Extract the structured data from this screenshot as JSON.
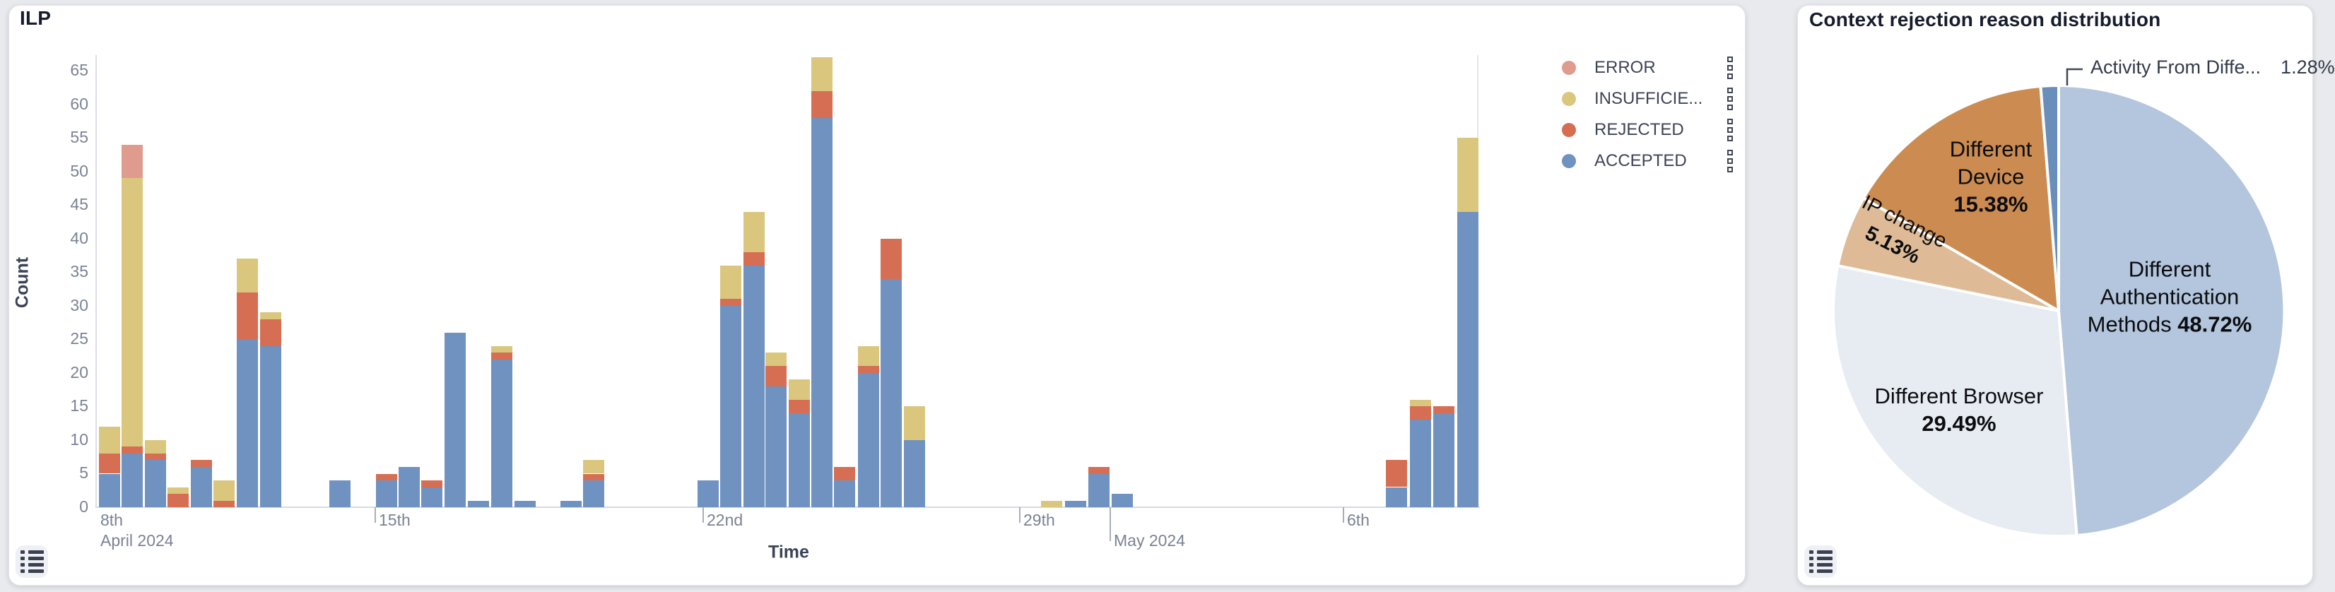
{
  "page": {
    "background_color": "#e9eaee"
  },
  "left_card": {
    "title": "ILP",
    "y_axis_title": "Count",
    "x_axis_title": "Time",
    "legend": [
      {
        "label": "ERROR",
        "color": "#df9c8e"
      },
      {
        "label": "INSUFFICIE...",
        "color": "#dac77d"
      },
      {
        "label": "REJECTED",
        "color": "#d66e53"
      },
      {
        "label": "ACCEPTED",
        "color": "#6f92c0"
      }
    ]
  },
  "right_card": {
    "title": "Context rejection reason distribution"
  },
  "chart_data": [
    {
      "type": "bar",
      "title": "ILP",
      "stacked": true,
      "xlabel": "Time",
      "ylabel": "Count",
      "ylim": [
        0,
        65
      ],
      "grid": false,
      "legend_position": "right",
      "y_ticks": [
        0,
        5,
        10,
        15,
        20,
        25,
        30,
        35,
        40,
        45,
        50,
        55,
        60,
        65
      ],
      "x_ticks": [
        {
          "label": "8th",
          "px": 142,
          "tick": false,
          "row": 1
        },
        {
          "label": "April 2024",
          "px": 142,
          "tick": false,
          "row": 2
        },
        {
          "label": "15th",
          "px": 530,
          "tick": true,
          "row": 1
        },
        {
          "label": "22nd",
          "px": 994,
          "tick": true,
          "row": 1
        },
        {
          "label": "29th",
          "px": 1442,
          "tick": true,
          "row": 1
        },
        {
          "label": "May 2024",
          "px": 1570,
          "tick": true,
          "row": 2,
          "tick_len": 48
        },
        {
          "label": "6th",
          "px": 1900,
          "tick": true,
          "row": 1
        }
      ],
      "series_order": [
        "accepted",
        "rejected",
        "insufficient",
        "error"
      ],
      "series_colors": {
        "accepted": "#6f92c0",
        "rejected": "#d66e53",
        "insufficient": "#dac77d",
        "error": "#df9c8e"
      },
      "bars": [
        {
          "x": 140,
          "accepted": 5,
          "rejected": 3,
          "insufficient": 4,
          "error": 0
        },
        {
          "x": 172,
          "accepted": 8,
          "rejected": 1,
          "insufficient": 40,
          "error": 5
        },
        {
          "x": 205,
          "accepted": 7,
          "rejected": 1,
          "insufficient": 2,
          "error": 0
        },
        {
          "x": 237,
          "accepted": 0,
          "rejected": 2,
          "insufficient": 1,
          "error": 0
        },
        {
          "x": 270,
          "accepted": 6,
          "rejected": 1,
          "insufficient": 0,
          "error": 0
        },
        {
          "x": 302,
          "accepted": 0,
          "rejected": 1,
          "insufficient": 3,
          "error": 0
        },
        {
          "x": 335,
          "accepted": 25,
          "rejected": 7,
          "insufficient": 5,
          "error": 0
        },
        {
          "x": 368,
          "accepted": 24,
          "rejected": 4,
          "insufficient": 1,
          "error": 0
        },
        {
          "x": 466,
          "accepted": 4,
          "rejected": 0,
          "insufficient": 0,
          "error": 0
        },
        {
          "x": 532,
          "accepted": 4,
          "rejected": 1,
          "insufficient": 0,
          "error": 0
        },
        {
          "x": 564,
          "accepted": 6,
          "rejected": 0,
          "insufficient": 0,
          "error": 0
        },
        {
          "x": 596,
          "accepted": 3,
          "rejected": 1,
          "insufficient": 0,
          "error": 0
        },
        {
          "x": 629,
          "accepted": 26,
          "rejected": 0,
          "insufficient": 0,
          "error": 0
        },
        {
          "x": 662,
          "accepted": 1,
          "rejected": 0,
          "insufficient": 0,
          "error": 0
        },
        {
          "x": 695,
          "accepted": 22,
          "rejected": 1,
          "insufficient": 1,
          "error": 0
        },
        {
          "x": 728,
          "accepted": 1,
          "rejected": 0,
          "insufficient": 0,
          "error": 0
        },
        {
          "x": 793,
          "accepted": 1,
          "rejected": 0,
          "insufficient": 0,
          "error": 0
        },
        {
          "x": 825,
          "accepted": 4,
          "rejected": 1,
          "insufficient": 2,
          "error": 0
        },
        {
          "x": 987,
          "accepted": 4,
          "rejected": 0,
          "insufficient": 0,
          "error": 0
        },
        {
          "x": 1019,
          "accepted": 30,
          "rejected": 1,
          "insufficient": 5,
          "error": 0
        },
        {
          "x": 1052,
          "accepted": 36,
          "rejected": 2,
          "insufficient": 6,
          "error": 0
        },
        {
          "x": 1083,
          "accepted": 18,
          "rejected": 3,
          "insufficient": 2,
          "error": 0
        },
        {
          "x": 1116,
          "accepted": 14,
          "rejected": 2,
          "insufficient": 3,
          "error": 0
        },
        {
          "x": 1148,
          "accepted": 58,
          "rejected": 4,
          "insufficient": 5,
          "error": 0
        },
        {
          "x": 1180,
          "accepted": 4,
          "rejected": 2,
          "insufficient": 0,
          "error": 0
        },
        {
          "x": 1214,
          "accepted": 20,
          "rejected": 1,
          "insufficient": 3,
          "error": 0
        },
        {
          "x": 1246,
          "accepted": 34,
          "rejected": 6,
          "insufficient": 0,
          "error": 0
        },
        {
          "x": 1279,
          "accepted": 10,
          "rejected": 0,
          "insufficient": 5,
          "error": 0
        },
        {
          "x": 1473,
          "accepted": 0,
          "rejected": 0,
          "insufficient": 1,
          "error": 0
        },
        {
          "x": 1507,
          "accepted": 1,
          "rejected": 0,
          "insufficient": 0,
          "error": 0
        },
        {
          "x": 1540,
          "accepted": 5,
          "rejected": 1,
          "insufficient": 0,
          "error": 0
        },
        {
          "x": 1573,
          "accepted": 2,
          "rejected": 0,
          "insufficient": 0,
          "error": 0
        },
        {
          "x": 1961,
          "accepted": 3,
          "rejected": 4,
          "insufficient": 0,
          "error": 0
        },
        {
          "x": 1995,
          "accepted": 13,
          "rejected": 2,
          "insufficient": 1,
          "error": 0
        },
        {
          "x": 2028,
          "accepted": 14,
          "rejected": 1,
          "insufficient": 0,
          "error": 0
        },
        {
          "x": 2062,
          "accepted": 44,
          "rejected": 0,
          "insufficient": 11,
          "error": 0
        }
      ]
    },
    {
      "type": "pie",
      "title": "Context rejection reason distribution",
      "start_angle": "top",
      "direction": "clockwise",
      "slices": [
        {
          "label": "Different Authentication Methods",
          "pct": 48.72,
          "pct_text": "48.72%",
          "color": "#b3c6dd"
        },
        {
          "label": "Different Browser",
          "pct": 29.49,
          "pct_text": "29.49%",
          "color": "#e7ebf2"
        },
        {
          "label": "IP change",
          "pct": 5.13,
          "pct_text": "5.13%",
          "color": "#debb96"
        },
        {
          "label": "Different Device",
          "pct": 15.38,
          "pct_text": "15.38%",
          "color": "#cc8b50"
        },
        {
          "label": "Activity From Diffe...",
          "pct": 1.28,
          "pct_text": "1.28%",
          "color": "#6a8ebc"
        }
      ]
    }
  ]
}
